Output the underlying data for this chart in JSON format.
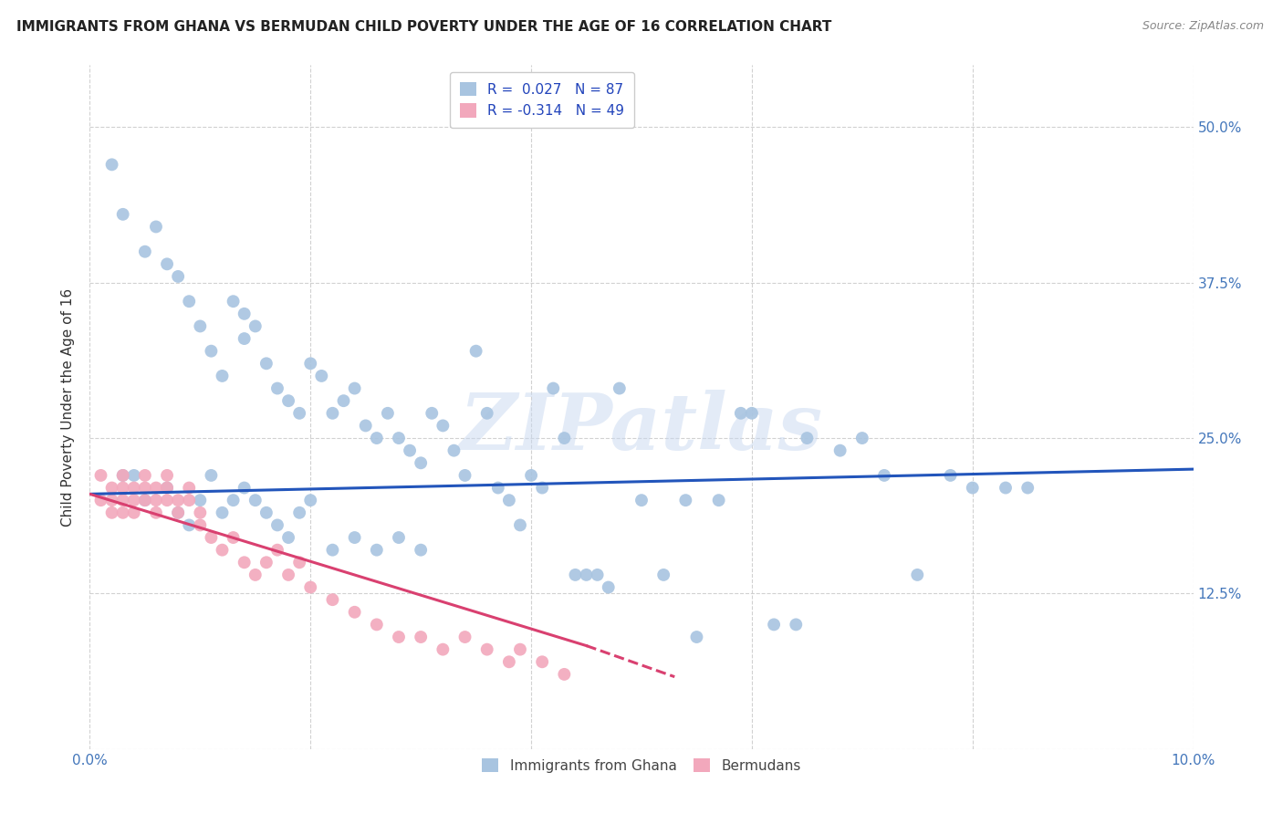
{
  "title": "IMMIGRANTS FROM GHANA VS BERMUDAN CHILD POVERTY UNDER THE AGE OF 16 CORRELATION CHART",
  "source": "Source: ZipAtlas.com",
  "ylabel": "Child Poverty Under the Age of 16",
  "xlim": [
    0.0,
    0.1
  ],
  "ylim": [
    0.0,
    0.55
  ],
  "blue_color": "#a8c4e0",
  "pink_color": "#f2a8bc",
  "blue_line_color": "#2255bb",
  "pink_line_color": "#d94070",
  "watermark": "ZIPatlas",
  "blue_line_x0": 0.0,
  "blue_line_y0": 0.205,
  "blue_line_x1": 0.1,
  "blue_line_y1": 0.225,
  "pink_line_x0": 0.0,
  "pink_line_y0": 0.205,
  "pink_line_x1_solid": 0.045,
  "pink_line_y1_solid": 0.083,
  "pink_line_x2_dash": 0.053,
  "pink_line_y2_dash": 0.058,
  "ghana_x": [
    0.002,
    0.003,
    0.005,
    0.006,
    0.007,
    0.008,
    0.009,
    0.01,
    0.011,
    0.012,
    0.013,
    0.014,
    0.014,
    0.015,
    0.016,
    0.017,
    0.018,
    0.019,
    0.02,
    0.021,
    0.022,
    0.023,
    0.024,
    0.025,
    0.026,
    0.027,
    0.028,
    0.029,
    0.03,
    0.031,
    0.032,
    0.033,
    0.034,
    0.035,
    0.036,
    0.037,
    0.038,
    0.039,
    0.04,
    0.041,
    0.042,
    0.043,
    0.044,
    0.045,
    0.046,
    0.047,
    0.048,
    0.05,
    0.052,
    0.054,
    0.055,
    0.057,
    0.059,
    0.06,
    0.062,
    0.064,
    0.065,
    0.068,
    0.07,
    0.072,
    0.075,
    0.078,
    0.08,
    0.083,
    0.085,
    0.003,
    0.004,
    0.005,
    0.007,
    0.008,
    0.009,
    0.01,
    0.011,
    0.012,
    0.013,
    0.014,
    0.015,
    0.016,
    0.017,
    0.018,
    0.019,
    0.02,
    0.022,
    0.024,
    0.026,
    0.028,
    0.03
  ],
  "ghana_y": [
    0.47,
    0.43,
    0.4,
    0.42,
    0.39,
    0.38,
    0.36,
    0.34,
    0.32,
    0.3,
    0.36,
    0.35,
    0.33,
    0.34,
    0.31,
    0.29,
    0.28,
    0.27,
    0.31,
    0.3,
    0.27,
    0.28,
    0.29,
    0.26,
    0.25,
    0.27,
    0.25,
    0.24,
    0.23,
    0.27,
    0.26,
    0.24,
    0.22,
    0.32,
    0.27,
    0.21,
    0.2,
    0.18,
    0.22,
    0.21,
    0.29,
    0.25,
    0.14,
    0.14,
    0.14,
    0.13,
    0.29,
    0.2,
    0.14,
    0.2,
    0.09,
    0.2,
    0.27,
    0.27,
    0.1,
    0.1,
    0.25,
    0.24,
    0.25,
    0.22,
    0.14,
    0.22,
    0.21,
    0.21,
    0.21,
    0.22,
    0.22,
    0.2,
    0.21,
    0.19,
    0.18,
    0.2,
    0.22,
    0.19,
    0.2,
    0.21,
    0.2,
    0.19,
    0.18,
    0.17,
    0.19,
    0.2,
    0.16,
    0.17,
    0.16,
    0.17,
    0.16
  ],
  "bermuda_x": [
    0.001,
    0.001,
    0.002,
    0.002,
    0.002,
    0.003,
    0.003,
    0.003,
    0.003,
    0.004,
    0.004,
    0.004,
    0.005,
    0.005,
    0.005,
    0.006,
    0.006,
    0.006,
    0.007,
    0.007,
    0.007,
    0.008,
    0.008,
    0.009,
    0.009,
    0.01,
    0.01,
    0.011,
    0.012,
    0.013,
    0.014,
    0.015,
    0.016,
    0.017,
    0.018,
    0.019,
    0.02,
    0.022,
    0.024,
    0.026,
    0.028,
    0.03,
    0.032,
    0.034,
    0.036,
    0.038,
    0.039,
    0.041,
    0.043
  ],
  "bermuda_y": [
    0.22,
    0.2,
    0.21,
    0.2,
    0.19,
    0.22,
    0.21,
    0.2,
    0.19,
    0.21,
    0.2,
    0.19,
    0.22,
    0.21,
    0.2,
    0.21,
    0.2,
    0.19,
    0.22,
    0.21,
    0.2,
    0.2,
    0.19,
    0.21,
    0.2,
    0.19,
    0.18,
    0.17,
    0.16,
    0.17,
    0.15,
    0.14,
    0.15,
    0.16,
    0.14,
    0.15,
    0.13,
    0.12,
    0.11,
    0.1,
    0.09,
    0.09,
    0.08,
    0.09,
    0.08,
    0.07,
    0.08,
    0.07,
    0.06
  ]
}
